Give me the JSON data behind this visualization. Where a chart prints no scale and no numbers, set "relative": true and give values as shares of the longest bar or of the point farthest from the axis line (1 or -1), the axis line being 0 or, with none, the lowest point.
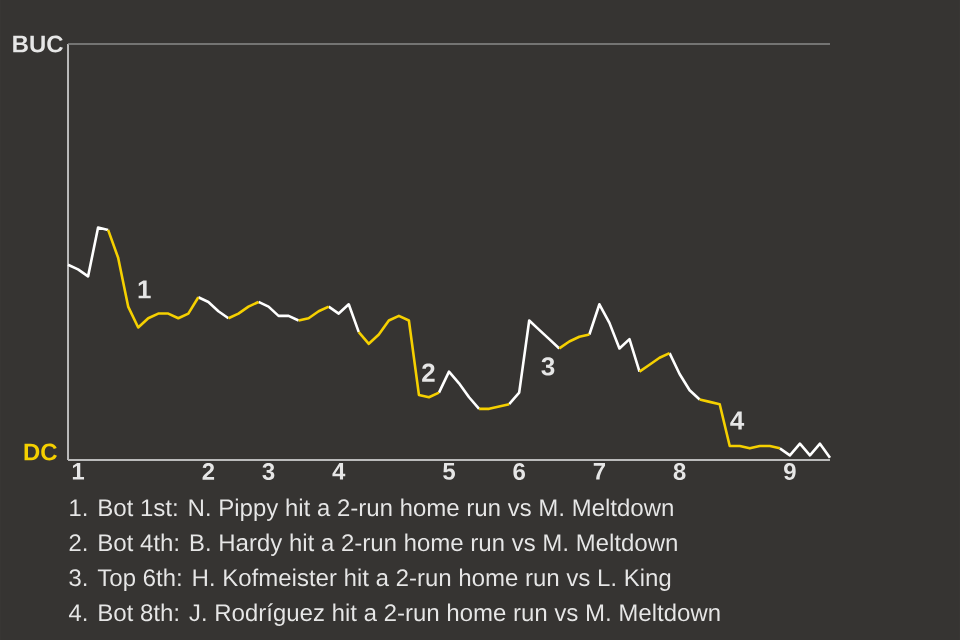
{
  "chart_data": {
    "type": "line",
    "relative": true,
    "categories": [
      null,
      "1",
      null,
      null,
      null,
      null,
      null,
      null,
      null,
      null,
      null,
      null,
      null,
      null,
      "2",
      null,
      null,
      null,
      null,
      null,
      "3",
      null,
      null,
      null,
      null,
      null,
      null,
      "4",
      null,
      null,
      null,
      null,
      null,
      null,
      null,
      null,
      null,
      null,
      "5",
      null,
      null,
      null,
      null,
      null,
      null,
      "6",
      null,
      null,
      null,
      null,
      null,
      null,
      null,
      "7",
      null,
      null,
      null,
      null,
      null,
      null,
      null,
      "8",
      null,
      null,
      null,
      null,
      null,
      null,
      null,
      null,
      null,
      null,
      "9",
      null,
      null,
      null,
      null
    ],
    "series": [
      {
        "color": "#ffffff",
        "values": [
          0.84,
          0.82,
          0.79,
          1,
          0.99,
          null,
          null,
          null,
          null,
          null,
          null,
          null,
          null,
          0.7,
          0.68,
          0.64,
          0.61,
          null,
          null,
          0.68,
          0.66,
          0.62,
          0.62,
          0.6,
          null,
          null,
          0.66,
          0.63,
          0.67,
          0.55,
          null,
          null,
          null,
          null,
          null,
          null,
          null,
          0.29,
          0.38,
          0.33,
          0.27,
          0.22,
          null,
          null,
          0.24,
          0.29,
          0.6,
          0.56,
          0.52,
          0.48,
          null,
          null,
          0.54,
          0.67,
          0.59,
          0.48,
          0.52,
          0.38,
          null,
          null,
          0.46,
          0.37,
          0.3,
          0.26,
          null,
          null,
          null,
          null,
          null,
          null,
          null,
          0.05,
          0.02,
          0.07,
          0.02,
          0.07,
          0.01
        ]
      },
      {
        "color": "#f5d000",
        "values": [
          null,
          null,
          null,
          null,
          0.99,
          0.87,
          0.66,
          0.57,
          0.61,
          0.63,
          0.63,
          0.61,
          0.63,
          0.7,
          null,
          null,
          0.61,
          0.63,
          0.66,
          0.68,
          null,
          null,
          null,
          0.6,
          0.61,
          0.64,
          0.66,
          null,
          null,
          0.55,
          0.5,
          0.54,
          0.6,
          0.62,
          0.6,
          0.28,
          0.27,
          0.29,
          null,
          null,
          null,
          0.22,
          0.22,
          0.23,
          0.24,
          null,
          null,
          null,
          null,
          0.48,
          0.51,
          0.53,
          0.54,
          null,
          null,
          null,
          null,
          0.38,
          0.41,
          0.44,
          0.46,
          null,
          null,
          0.26,
          0.25,
          0.24,
          0.06,
          0.06,
          0.05,
          0.06,
          0.06,
          0.05,
          null,
          null,
          null,
          null,
          null
        ]
      }
    ],
    "marker": "none",
    "line_style": "solid",
    "annotations": [
      "1",
      "2",
      "3",
      "4",
      "BUC",
      "DC",
      "1. Bot 1st: N. Pippy hit a 2-run home run vs M. Meltdown",
      "2. Bot 4th: B. Hardy hit a 2-run home run vs M. Meltdown",
      "3. Top 6th: H. Kofmeister hit a 2-run home run vs L. King",
      "4. Bot 8th: J. Rodríguez hit a 2-run home run vs M. Meltdown"
    ]
  }
}
